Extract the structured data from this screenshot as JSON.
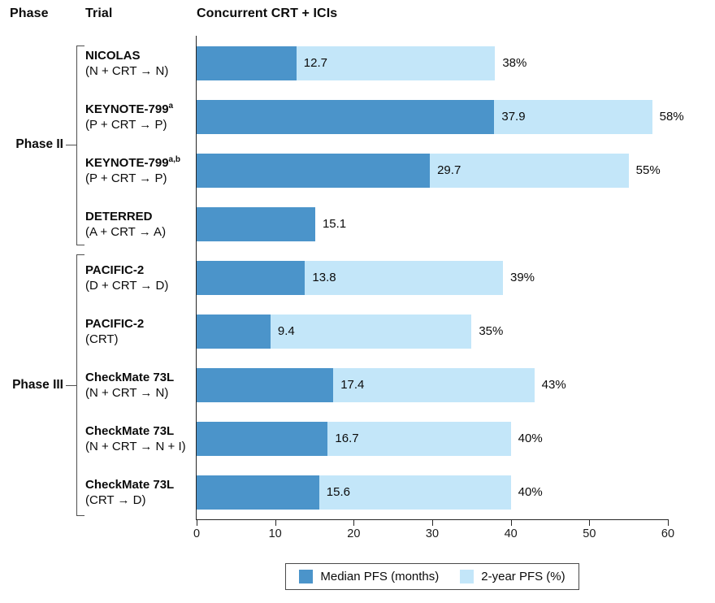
{
  "header": {
    "phase_col": "Phase",
    "trial_col": "Trial",
    "title": "Concurrent CRT + ICIs"
  },
  "colors": {
    "median_bar": "#4b94ca",
    "two_year_bar": "#c3e6f9",
    "axis_line": "#262626",
    "bracket_line": "#4f4f4f"
  },
  "chart_data": {
    "type": "bar",
    "orientation": "horizontal",
    "title": "Concurrent CRT + ICIs",
    "xlabel": "",
    "ylabel": "",
    "grid": false,
    "x_axis": {
      "min": 0,
      "max": 60,
      "ticks": [
        0,
        10,
        20,
        30,
        40,
        50,
        60
      ]
    },
    "legend_position": "bottom",
    "legend": [
      {
        "key": "median_pfs",
        "label": "Median PFS (months)",
        "color": "#4b94ca"
      },
      {
        "key": "two_year_pfs",
        "label": "2-year PFS (%)",
        "color": "#c3e6f9"
      }
    ],
    "phases": [
      {
        "label": "Phase II",
        "row_start": 0,
        "row_end": 3
      },
      {
        "label": "Phase III",
        "row_start": 4,
        "row_end": 8
      }
    ],
    "rows": [
      {
        "phase": "Phase II",
        "trial": "NICOLAS",
        "sup": "",
        "protocol": "(N + CRT → N)",
        "median_pfs": 12.7,
        "median_label": "12.7",
        "two_year_pfs": 38,
        "two_year_label": "38%"
      },
      {
        "phase": "Phase II",
        "trial": "KEYNOTE-799",
        "sup": "a",
        "protocol": "(P + CRT → P)",
        "median_pfs": 37.9,
        "median_label": "37.9",
        "two_year_pfs": 58,
        "two_year_label": "58%"
      },
      {
        "phase": "Phase II",
        "trial": "KEYNOTE-799",
        "sup": "a,b",
        "protocol": "(P + CRT → P)",
        "median_pfs": 29.7,
        "median_label": "29.7",
        "two_year_pfs": 55,
        "two_year_label": "55%"
      },
      {
        "phase": "Phase II",
        "trial": "DETERRED",
        "sup": "",
        "protocol": "(A + CRT → A)",
        "median_pfs": 15.1,
        "median_label": "15.1",
        "two_year_pfs": null,
        "two_year_label": null
      },
      {
        "phase": "Phase III",
        "trial": "PACIFIC-2",
        "sup": "",
        "protocol": "(D + CRT → D)",
        "median_pfs": 13.8,
        "median_label": "13.8",
        "two_year_pfs": 39,
        "two_year_label": "39%"
      },
      {
        "phase": "Phase III",
        "trial": "PACIFIC-2",
        "sup": "",
        "protocol": "(CRT)",
        "median_pfs": 9.4,
        "median_label": "9.4",
        "two_year_pfs": 35,
        "two_year_label": "35%"
      },
      {
        "phase": "Phase III",
        "trial": "CheckMate 73L",
        "sup": "",
        "protocol": "(N + CRT → N)",
        "median_pfs": 17.4,
        "median_label": "17.4",
        "two_year_pfs": 43,
        "two_year_label": "43%"
      },
      {
        "phase": "Phase III",
        "trial": "CheckMate 73L",
        "sup": "",
        "protocol": "(N + CRT → N + I)",
        "median_pfs": 16.7,
        "median_label": "16.7",
        "two_year_pfs": 40,
        "two_year_label": "40%"
      },
      {
        "phase": "Phase III",
        "trial": "CheckMate 73L",
        "sup": "",
        "protocol": "(CRT → D)",
        "median_pfs": 15.6,
        "median_label": "15.6",
        "two_year_pfs": 40,
        "two_year_label": "40%"
      }
    ]
  }
}
